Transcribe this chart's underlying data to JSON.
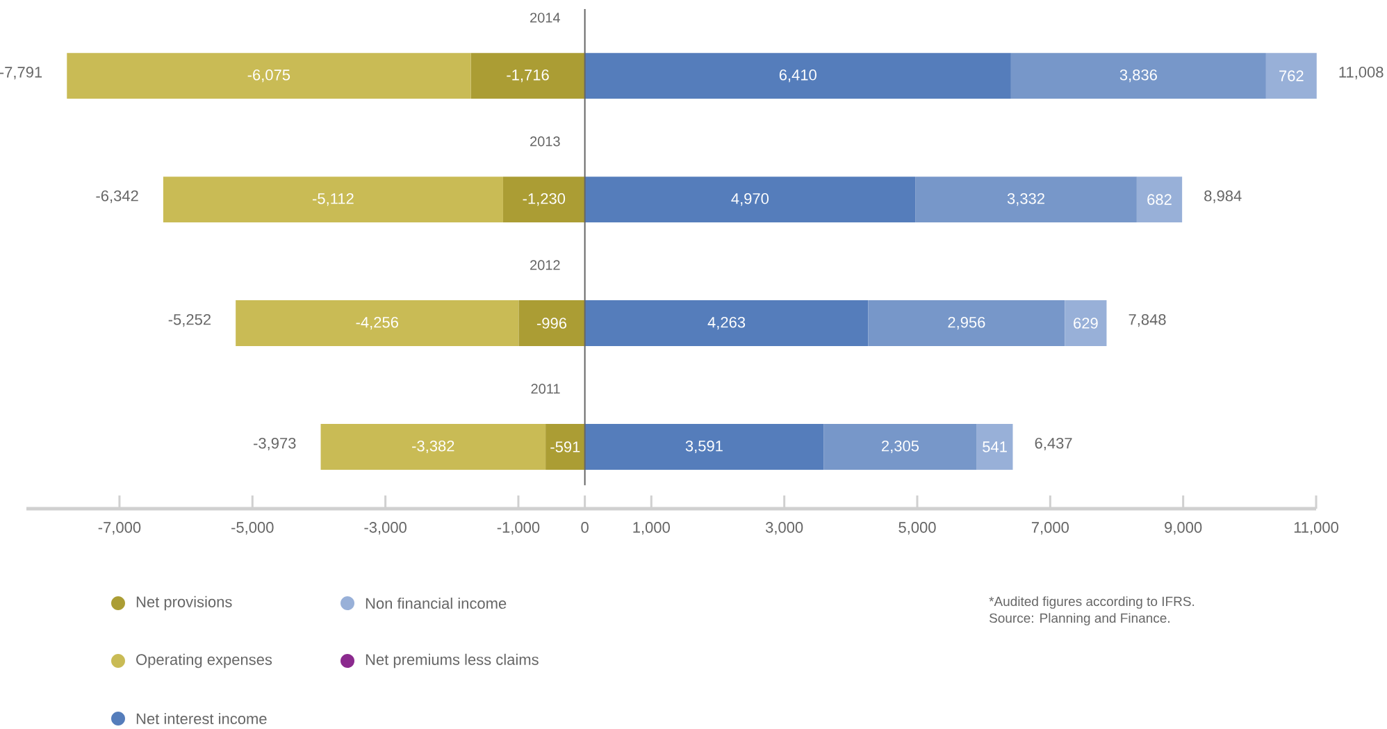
{
  "chart_data": {
    "type": "bar",
    "orientation": "horizontal",
    "stacked": true,
    "categories": [
      "2014",
      "2013",
      "2012",
      "2011"
    ],
    "series": [
      {
        "name": "Net provisions",
        "color": "#ab9d34",
        "values": [
          -1716,
          -1230,
          -996,
          -591
        ],
        "value_labels": [
          "-1,716",
          "-1,230",
          "-996",
          "-591"
        ]
      },
      {
        "name": "Operating expenses",
        "color": "#c9bb55",
        "values": [
          -6075,
          -5112,
          -4256,
          -3382
        ],
        "value_labels": [
          "-6,075",
          "-5,112",
          "-4,256",
          "-3,382"
        ]
      },
      {
        "name": "Net interest income",
        "color": "#557dbb",
        "values": [
          6410,
          4970,
          4263,
          3591
        ],
        "value_labels": [
          "6,410",
          "4,970",
          "4,263",
          "3,591"
        ]
      },
      {
        "color": "#7797c9",
        "values": [
          3836,
          3332,
          2956,
          2305
        ],
        "value_labels": [
          "3,836",
          "3,332",
          "2,956",
          "2,305"
        ]
      },
      {
        "name": "Non financial income",
        "color": "#98b0d8",
        "values": [
          762,
          682,
          629,
          541
        ],
        "value_labels": [
          "762",
          "682",
          "629",
          "541"
        ]
      },
      {
        "name": "Net premiums less claims",
        "color": "#8b2a8e",
        "values": [
          null,
          null,
          null,
          null
        ]
      }
    ],
    "totals": [
      [
        "-7,791",
        "11,008"
      ],
      [
        "-6,342",
        "8,984"
      ],
      [
        "-5,252",
        "7,848"
      ],
      [
        "-3,973",
        "6,437"
      ]
    ],
    "xlim": [
      -8400,
      11000
    ],
    "xticks": [
      {
        "value": -7000,
        "label": "-7,000"
      },
      {
        "value": -5000,
        "label": "-5,000"
      },
      {
        "value": -3000,
        "label": "-3,000"
      },
      {
        "value": -1000,
        "label": "-1,000"
      },
      0,
      {
        "value": 1000,
        "label": "1,000"
      },
      {
        "value": 3000,
        "label": "3,000"
      },
      {
        "value": 5000,
        "label": "5,000"
      },
      {
        "value": 7000,
        "label": "7,000"
      },
      {
        "value": 9000,
        "label": "9,000"
      },
      {
        "value": 11000,
        "label": "11,000"
      }
    ],
    "grid": false,
    "legend": "bottom left",
    "annotations": [
      "*Audited figures according to IFRS.",
      "Source: Planning and Finance."
    ]
  }
}
